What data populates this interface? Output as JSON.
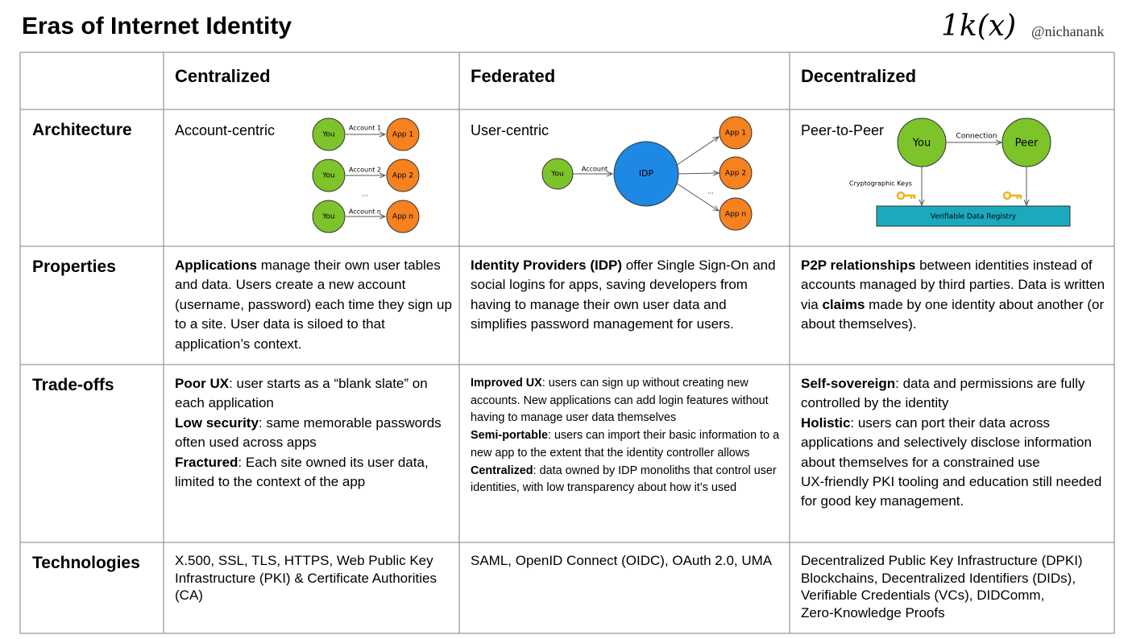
{
  "header": {
    "title": "Eras of Internet Identity",
    "logo": "1k(x)",
    "handle": "@nichanank"
  },
  "table": {
    "columns": [
      "Centralized",
      "Federated",
      "Decentralized"
    ],
    "rows": [
      {
        "label": "Architecture",
        "cells": [
          "Account-centric",
          "User-centric",
          "Peer-to-Peer"
        ]
      },
      {
        "label": "Properties",
        "cells": [
          [
            [
              {
                "text": "Applications",
                "bold": true
              },
              {
                "text": " manage their own user tables and data. Users create a new account (username, password) each time they sign up to a site. User data is siloed to that application’s context."
              }
            ]
          ],
          [
            [
              {
                "text": "Identity Providers (IDP)",
                "bold": true
              },
              {
                "text": " offer Single Sign-On and social logins for apps, saving developers from having to manage their own user data and simplifies password management for users."
              }
            ]
          ],
          [
            [
              {
                "text": "P2P relationships",
                "bold": true
              },
              {
                "text": " between identities instead of accounts managed by third parties. Data is written via "
              },
              {
                "text": "claims",
                "bold": true
              },
              {
                "text": " made by one identity about another (or about themselves)."
              }
            ]
          ]
        ]
      },
      {
        "label": "Trade-offs",
        "cells": [
          [
            [
              {
                "text": "Poor UX",
                "bold": true
              },
              {
                "text": ": user starts as a “blank slate” on each application"
              }
            ],
            [
              {
                "text": "Low security",
                "bold": true
              },
              {
                "text": ": same memorable passwords often used across apps"
              }
            ],
            [
              {
                "text": "Fractured",
                "bold": true
              },
              {
                "text": ": Each site owned its user data, limited to the context of the app"
              }
            ]
          ],
          [
            [
              {
                "text": "Improved UX",
                "bold": true
              },
              {
                "text": ": users can sign up without creating new accounts. New applications can add login features without having to manage user data themselves"
              }
            ],
            [
              {
                "text": "Semi-portable",
                "bold": true
              },
              {
                "text": ": users can import their basic information to a new app to the extent that the identity controller allows"
              }
            ],
            [
              {
                "text": "Centralized",
                "bold": true
              },
              {
                "text": ": data owned by IDP monoliths that control user identities, with low transparency about how it’s used"
              }
            ]
          ],
          [
            [
              {
                "text": "Self-sovereign",
                "bold": true
              },
              {
                "text": ": data and permissions are fully controlled by the identity"
              }
            ],
            [
              {
                "text": "Holistic",
                "bold": true
              },
              {
                "text": ": users can port their data across applications and selectively disclose information about themselves for a constrained use"
              }
            ],
            [
              {
                "text": "UX-friendly PKI tooling and education still needed for good key management."
              }
            ]
          ]
        ]
      },
      {
        "label": "Technologies",
        "cells": [
          [
            [
              {
                "text": "X.500, SSL, TLS, HTTPS, Web Public Key Infrastructure (PKI) & Certificate Authorities (CA)"
              }
            ]
          ],
          [
            [
              {
                "text": "SAML, OpenID Connect (OIDC), OAuth 2.0, UMA"
              }
            ]
          ],
          [
            [
              {
                "text": "Decentralized Public Key Infrastructure (DPKI)"
              }
            ],
            [
              {
                "text": "Blockchains, Decentralized Identifiers (DIDs),"
              }
            ],
            [
              {
                "text": "Verifiable Credentials (VCs), DIDComm,"
              }
            ],
            [
              {
                "text": "Zero-Knowledge Proofs"
              }
            ]
          ]
        ]
      }
    ]
  },
  "diagrams": {
    "centralized": {
      "rows": [
        {
          "you": "You",
          "link": "Account 1",
          "app": "App 1"
        },
        {
          "you": "You",
          "link": "Account 2",
          "app": "App 2"
        },
        {
          "you": "You",
          "link": "Account n",
          "app": "App n"
        }
      ],
      "ellipsis": "..."
    },
    "federated": {
      "you": "You",
      "link": "Account",
      "hub": "IDP",
      "apps": [
        "App 1",
        "App 2",
        "App n"
      ],
      "ellipsis": "..."
    },
    "decentralized": {
      "you": "You",
      "peer": "Peer",
      "link": "Connection",
      "keys": "Cryptographic Keys",
      "registry": "Verifiable Data Registry"
    }
  }
}
